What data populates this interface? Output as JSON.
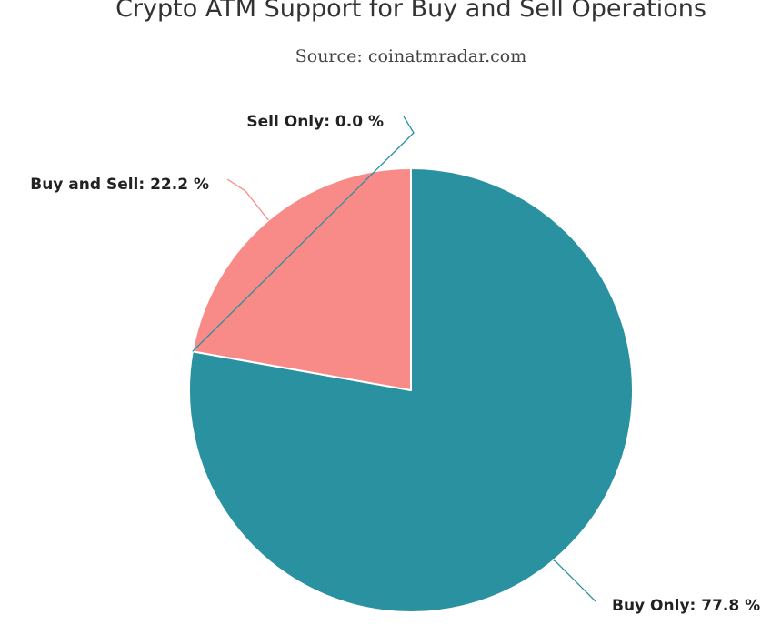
{
  "chart_data": {
    "type": "pie",
    "title": "Crypto ATM Support for Buy and Sell Operations",
    "subtitle": "Source: coinatmradar.com",
    "slices": [
      {
        "name": "Buy Only",
        "value": 77.8,
        "label": "Buy Only: 77.8 %",
        "color": "#2a91a0"
      },
      {
        "name": "Sell Only",
        "value": 0.0,
        "label": "Sell Only: 0.0 %",
        "color": "#2a91a0"
      },
      {
        "name": "Buy and Sell",
        "value": 22.2,
        "label": "Buy and Sell: 22.2 %",
        "color": "#f88a87"
      }
    ]
  }
}
